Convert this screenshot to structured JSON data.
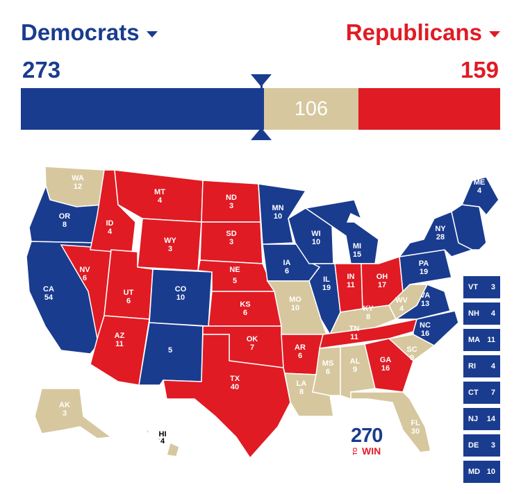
{
  "colors": {
    "dem": "#1a3c8f",
    "rep": "#e01b24",
    "tossup": "#d6c79e",
    "white": "#ffffff"
  },
  "header": {
    "dem_label": "Democrats",
    "rep_label": "Republicans",
    "dem_count": "273",
    "rep_count": "159",
    "tossup_count": "106"
  },
  "bar": {
    "total": 538,
    "dem": 273,
    "tossup": 106,
    "rep": 159,
    "threshold": 270
  },
  "states": {
    "WA": {
      "label": "WA",
      "votes": "12",
      "party": "tossup"
    },
    "OR": {
      "label": "OR",
      "votes": "8",
      "party": "dem"
    },
    "CA": {
      "label": "CA",
      "votes": "54",
      "party": "dem"
    },
    "NV": {
      "label": "NV",
      "votes": "6",
      "party": "rep"
    },
    "ID": {
      "label": "ID",
      "votes": "4",
      "party": "rep"
    },
    "MT": {
      "label": "MT",
      "votes": "4",
      "party": "rep"
    },
    "WY": {
      "label": "WY",
      "votes": "3",
      "party": "rep"
    },
    "UT": {
      "label": "UT",
      "votes": "6",
      "party": "rep"
    },
    "AZ": {
      "label": "AZ",
      "votes": "11",
      "party": "rep"
    },
    "CO": {
      "label": "CO",
      "votes": "10",
      "party": "dem"
    },
    "NM": {
      "label": "",
      "votes": "5",
      "party": "dem"
    },
    "ND": {
      "label": "ND",
      "votes": "3",
      "party": "rep"
    },
    "SD": {
      "label": "SD",
      "votes": "3",
      "party": "rep"
    },
    "NE": {
      "label": "NE",
      "votes": "5",
      "party": "rep"
    },
    "KS": {
      "label": "KS",
      "votes": "6",
      "party": "rep"
    },
    "OK": {
      "label": "OK",
      "votes": "7",
      "party": "rep"
    },
    "TX": {
      "label": "TX",
      "votes": "40",
      "party": "rep"
    },
    "MN": {
      "label": "MN",
      "votes": "10",
      "party": "dem"
    },
    "IA": {
      "label": "IA",
      "votes": "6",
      "party": "dem"
    },
    "MO": {
      "label": "MO",
      "votes": "10",
      "party": "tossup"
    },
    "AR": {
      "label": "AR",
      "votes": "6",
      "party": "rep"
    },
    "LA": {
      "label": "LA",
      "votes": "8",
      "party": "tossup"
    },
    "WI": {
      "label": "WI",
      "votes": "10",
      "party": "dem"
    },
    "IL": {
      "label": "IL",
      "votes": "19",
      "party": "dem"
    },
    "MI": {
      "label": "MI",
      "votes": "15",
      "party": "dem"
    },
    "IN": {
      "label": "IN",
      "votes": "11",
      "party": "rep"
    },
    "OH": {
      "label": "OH",
      "votes": "17",
      "party": "rep"
    },
    "KY": {
      "label": "KY",
      "votes": "8",
      "party": "tossup"
    },
    "TN": {
      "label": "TN",
      "votes": "11",
      "party": "rep"
    },
    "MS": {
      "label": "MS",
      "votes": "6",
      "party": "tossup"
    },
    "AL": {
      "label": "AL",
      "votes": "9",
      "party": "tossup"
    },
    "GA": {
      "label": "GA",
      "votes": "16",
      "party": "rep"
    },
    "FL": {
      "label": "FL",
      "votes": "30",
      "party": "tossup"
    },
    "SC": {
      "label": "SC",
      "votes": "9",
      "party": "tossup"
    },
    "NC": {
      "label": "NC",
      "votes": "16",
      "party": "dem"
    },
    "VA": {
      "label": "VA",
      "votes": "13",
      "party": "dem"
    },
    "WV": {
      "label": "WV",
      "votes": "4",
      "party": "tossup"
    },
    "PA": {
      "label": "PA",
      "votes": "19",
      "party": "dem"
    },
    "NY": {
      "label": "NY",
      "votes": "28",
      "party": "dem"
    },
    "ME": {
      "label": "ME",
      "votes": "4",
      "party": "dem"
    },
    "AK": {
      "label": "AK",
      "votes": "3",
      "party": "tossup"
    },
    "HI": {
      "label": "HI",
      "votes": "4",
      "party": "tossup"
    }
  },
  "small_states": [
    {
      "label": "VT",
      "votes": "3",
      "party": "dem"
    },
    {
      "label": "NH",
      "votes": "4",
      "party": "dem"
    },
    {
      "label": "MA",
      "votes": "11",
      "party": "dem"
    },
    {
      "label": "RI",
      "votes": "4",
      "party": "dem"
    },
    {
      "label": "CT",
      "votes": "7",
      "party": "dem"
    },
    {
      "label": "NJ",
      "votes": "14",
      "party": "dem"
    },
    {
      "label": "DE",
      "votes": "3",
      "party": "dem"
    },
    {
      "label": "MD",
      "votes": "10",
      "party": "dem"
    }
  ],
  "logo": {
    "number": "270",
    "to": "TO",
    "word": "WIN"
  }
}
